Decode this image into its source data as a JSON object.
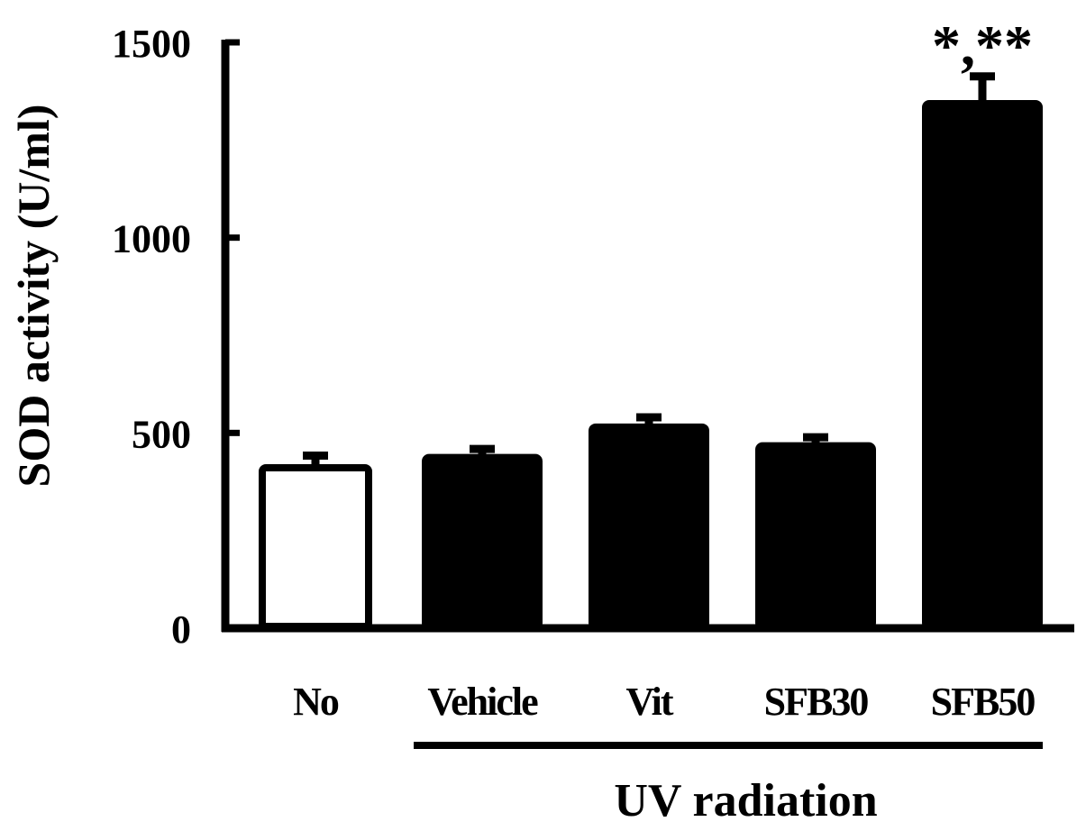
{
  "chart_data": {
    "type": "bar",
    "ylabel": "SOD activity (U/ml)",
    "xlabel": "",
    "ylim": [
      0,
      1500
    ],
    "yticks": [
      0,
      500,
      1000,
      1500
    ],
    "categories": [
      "No",
      "Vehicle",
      "Vit",
      "SFB30",
      "SFB50"
    ],
    "values": [
      420,
      437,
      515,
      467,
      1343
    ],
    "errors": [
      22,
      22,
      25,
      22,
      70
    ],
    "bar_fills": [
      "#ffffff",
      "#000000",
      "#000000",
      "#000000",
      "#000000"
    ],
    "annotations": [
      {
        "category": "SFB50",
        "text": "*,**"
      }
    ],
    "group_label": {
      "text": "UV radiation",
      "spans": [
        "Vehicle",
        "SFB50"
      ]
    }
  }
}
